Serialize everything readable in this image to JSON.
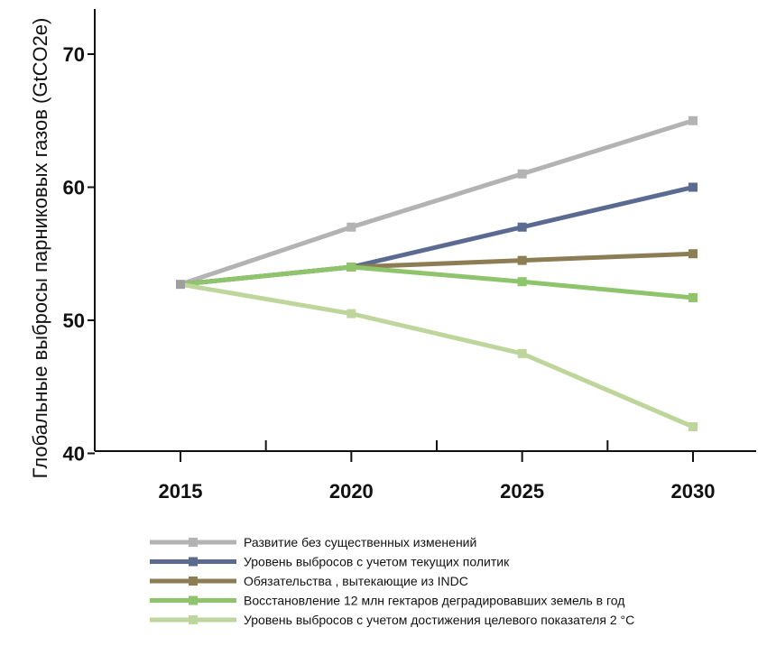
{
  "chart_data": {
    "type": "line",
    "title": "",
    "xlabel": "",
    "ylabel": "Глобальные выбросы парниковых газов (GtCO2e)",
    "x": [
      2015,
      2020,
      2025,
      2030
    ],
    "x_tick_labels": [
      "2015",
      "2020",
      "2025",
      "2030"
    ],
    "ylim": [
      40,
      73
    ],
    "y_ticks": [
      40,
      50,
      60,
      70
    ],
    "y_tick_labels": [
      "40",
      "50",
      "60",
      "70"
    ],
    "grid": false,
    "legend_position": "bottom",
    "series": [
      {
        "name": "Развитие без существенных изменений",
        "color": "#b3b3b3",
        "values": [
          52.7,
          57.0,
          61.0,
          65.0
        ]
      },
      {
        "name": "Уровень выбросов с учетом текущих политик",
        "color": "#5a6a91",
        "values": [
          52.7,
          54.0,
          57.0,
          60.0
        ]
      },
      {
        "name": "Обязательства , вытекающие из INDC",
        "color": "#8c7d55",
        "values": [
          52.7,
          54.0,
          54.5,
          55.0
        ]
      },
      {
        "name": "Восстановление 12 млн гектаров деградировавших земель в год",
        "color": "#8ec46c",
        "values": [
          52.7,
          54.0,
          52.9,
          51.7
        ]
      },
      {
        "name": "Уровень выбросов  с учетом достижения целевого показателя 2 °С",
        "color": "#bed69c",
        "values": [
          52.7,
          50.5,
          47.5,
          42.0
        ]
      }
    ]
  }
}
